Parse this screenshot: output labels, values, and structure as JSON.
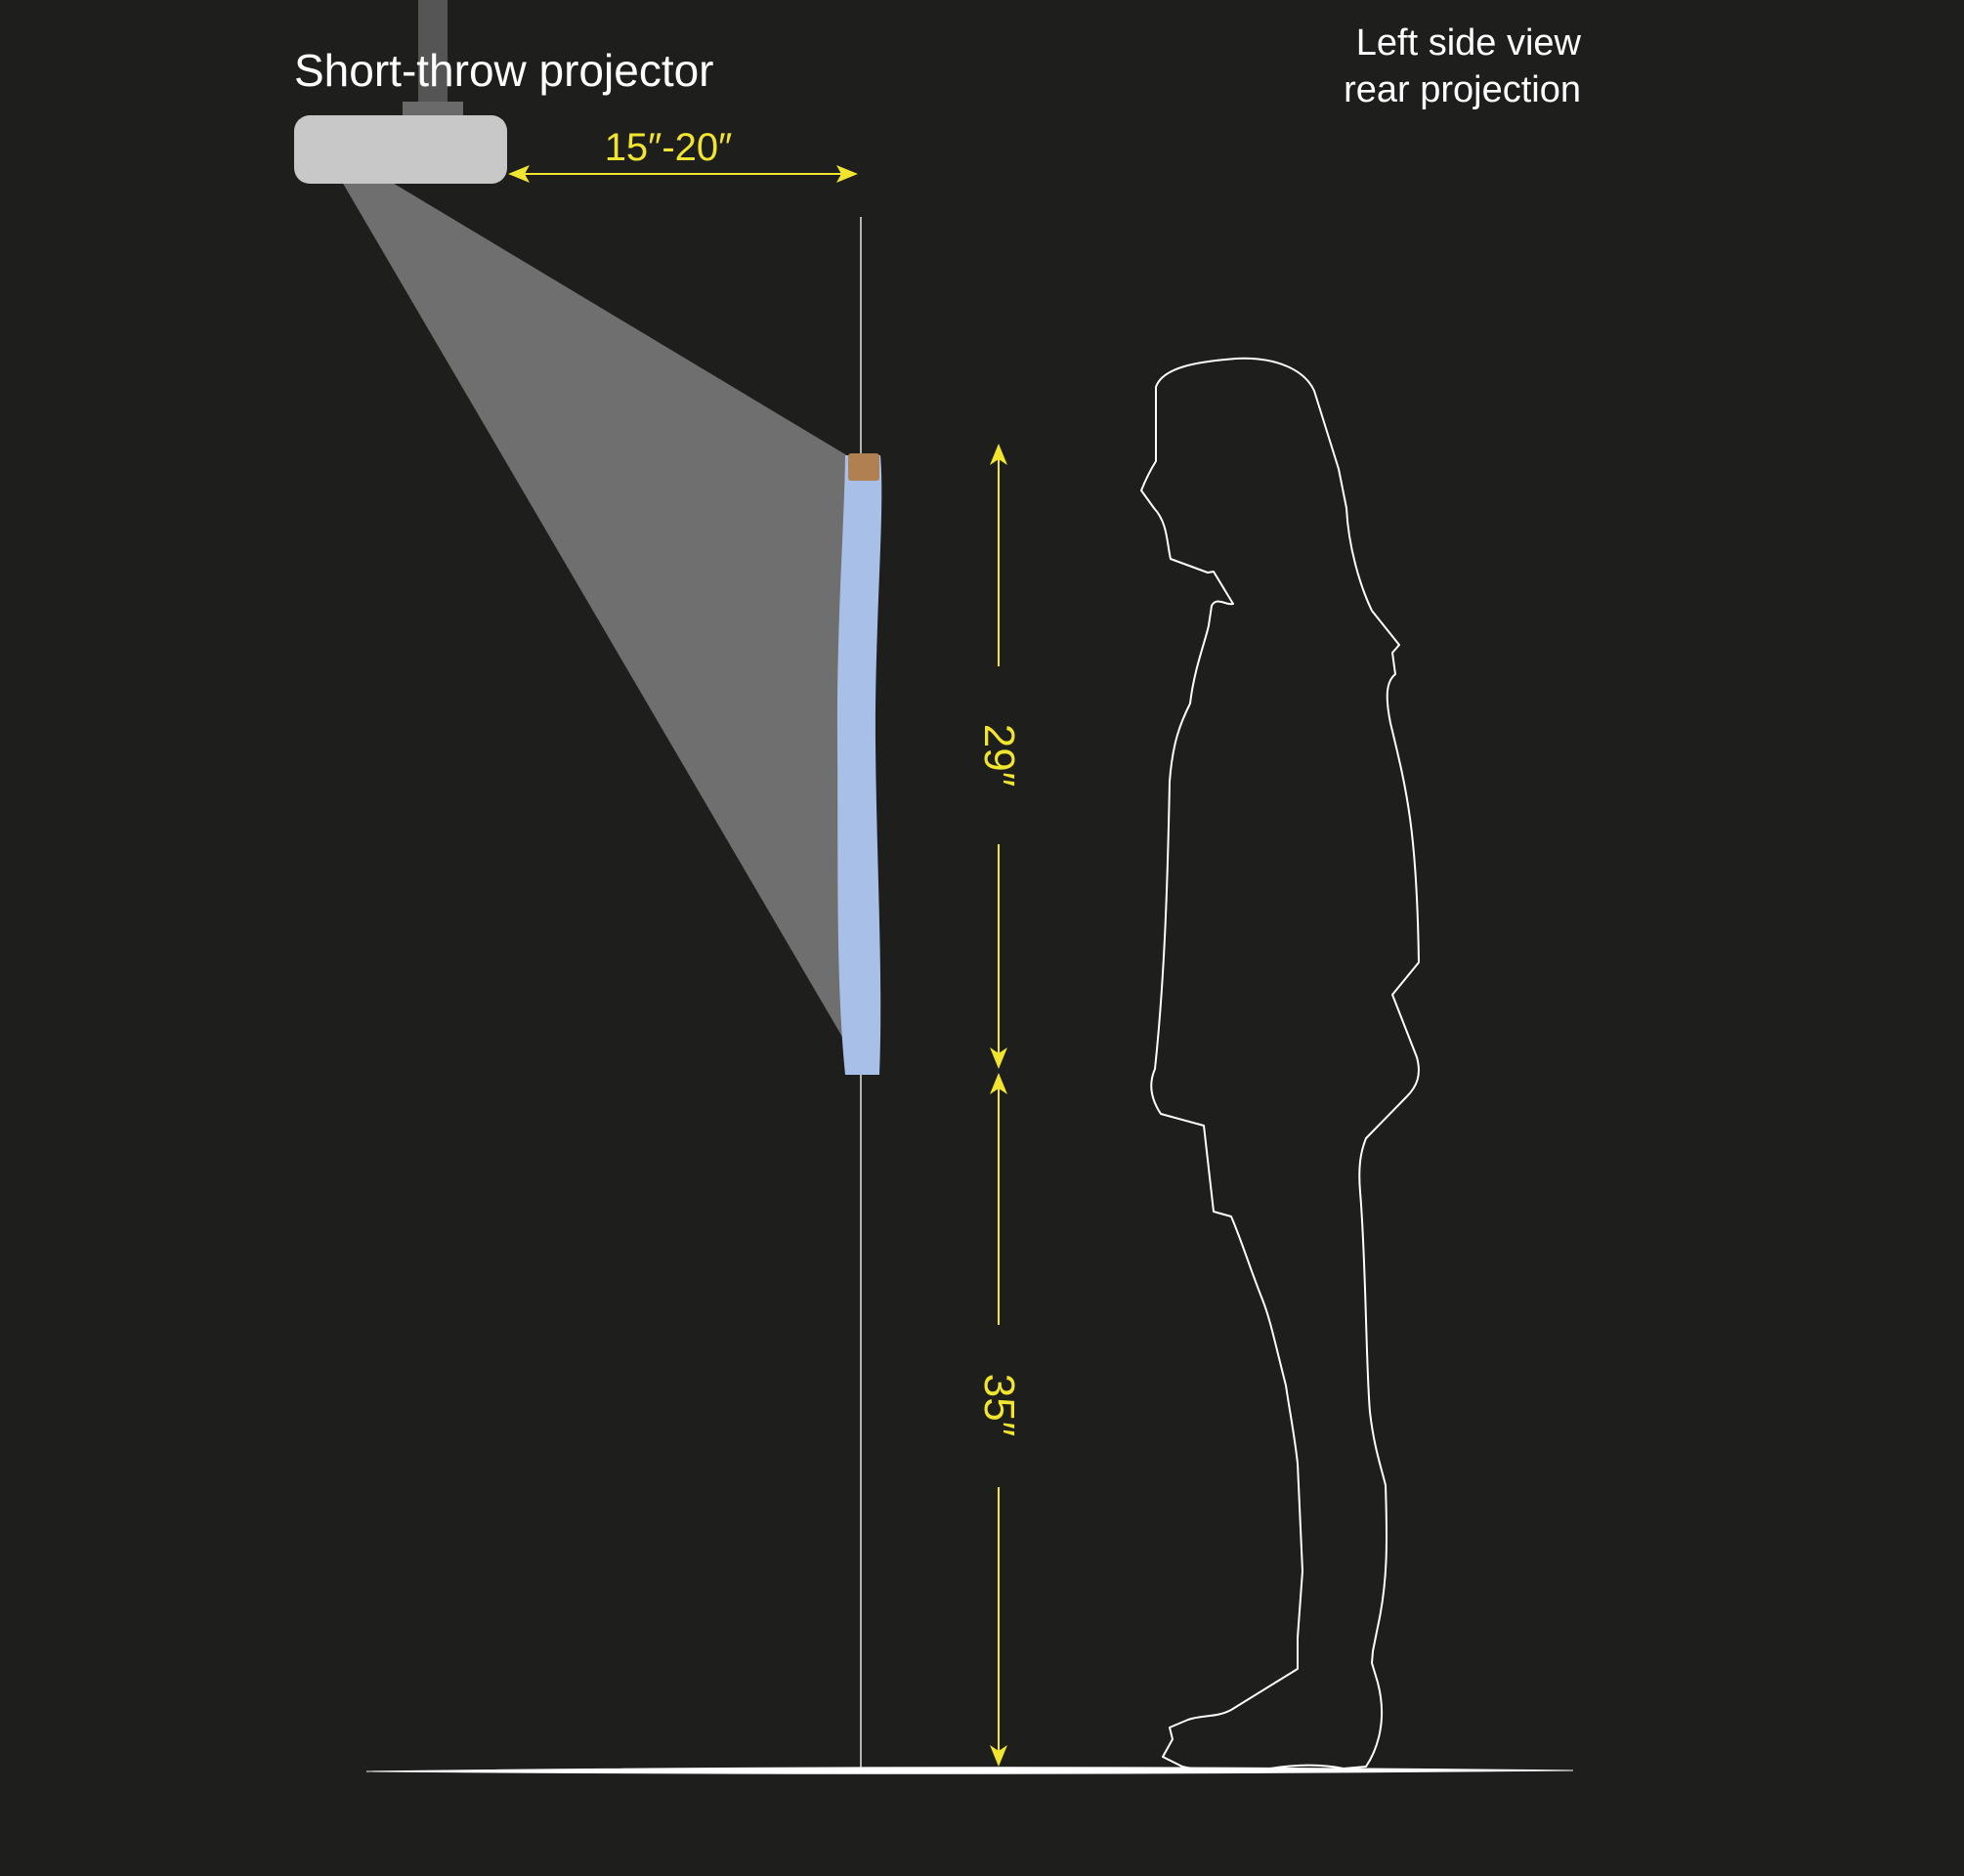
{
  "labels": {
    "projector": "Short-throw projector",
    "view_line1": "Left side view",
    "view_line2": "rear projection"
  },
  "dimensions": {
    "throw_distance": "15″-20″",
    "screen_height": "29″",
    "floor_to_screen": "35″"
  },
  "colors": {
    "background": "#1e1e1d",
    "dimension": "#f2e530",
    "screen": "#a8c0e8",
    "projector": "#c8c8c8",
    "beam": "#6f6f6f",
    "bracket": "#b08050",
    "outline": "#ffffff"
  }
}
